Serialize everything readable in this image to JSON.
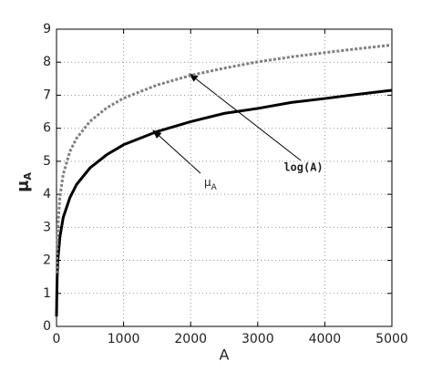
{
  "chart_data": {
    "type": "line",
    "xlabel": "A",
    "ylabel": "μ",
    "ylabel_sub": "A",
    "x": [
      0,
      5,
      10,
      20,
      50,
      100,
      200,
      300,
      500,
      750,
      1000,
      1500,
      2000,
      2500,
      3000,
      3500,
      4000,
      4500,
      5000
    ],
    "series": [
      {
        "name": "μ_A",
        "color": "#000000",
        "style": "solid",
        "values": [
          0.3,
          1.0,
          1.5,
          2.0,
          2.7,
          3.3,
          3.9,
          4.3,
          4.8,
          5.2,
          5.5,
          5.9,
          6.2,
          6.45,
          6.6,
          6.78,
          6.9,
          7.03,
          7.15
        ]
      },
      {
        "name": "log(A)",
        "color": "#808080",
        "style": "dotted",
        "values": [
          null,
          1.61,
          2.3,
          3.0,
          3.91,
          4.61,
          5.3,
          5.7,
          6.21,
          6.62,
          6.91,
          7.31,
          7.6,
          7.82,
          8.01,
          8.16,
          8.29,
          8.41,
          8.52
        ]
      }
    ],
    "annotations": [
      {
        "text": "log(A)"
      },
      {
        "text": "μ",
        "sub": "A"
      }
    ],
    "xlim": [
      0,
      5000
    ],
    "xticks": [
      0,
      1000,
      2000,
      3000,
      4000,
      5000
    ],
    "ylim": [
      0,
      9
    ],
    "yticks": [
      0,
      1,
      2,
      3,
      4,
      5,
      6,
      7,
      8,
      9
    ],
    "grid": true
  }
}
